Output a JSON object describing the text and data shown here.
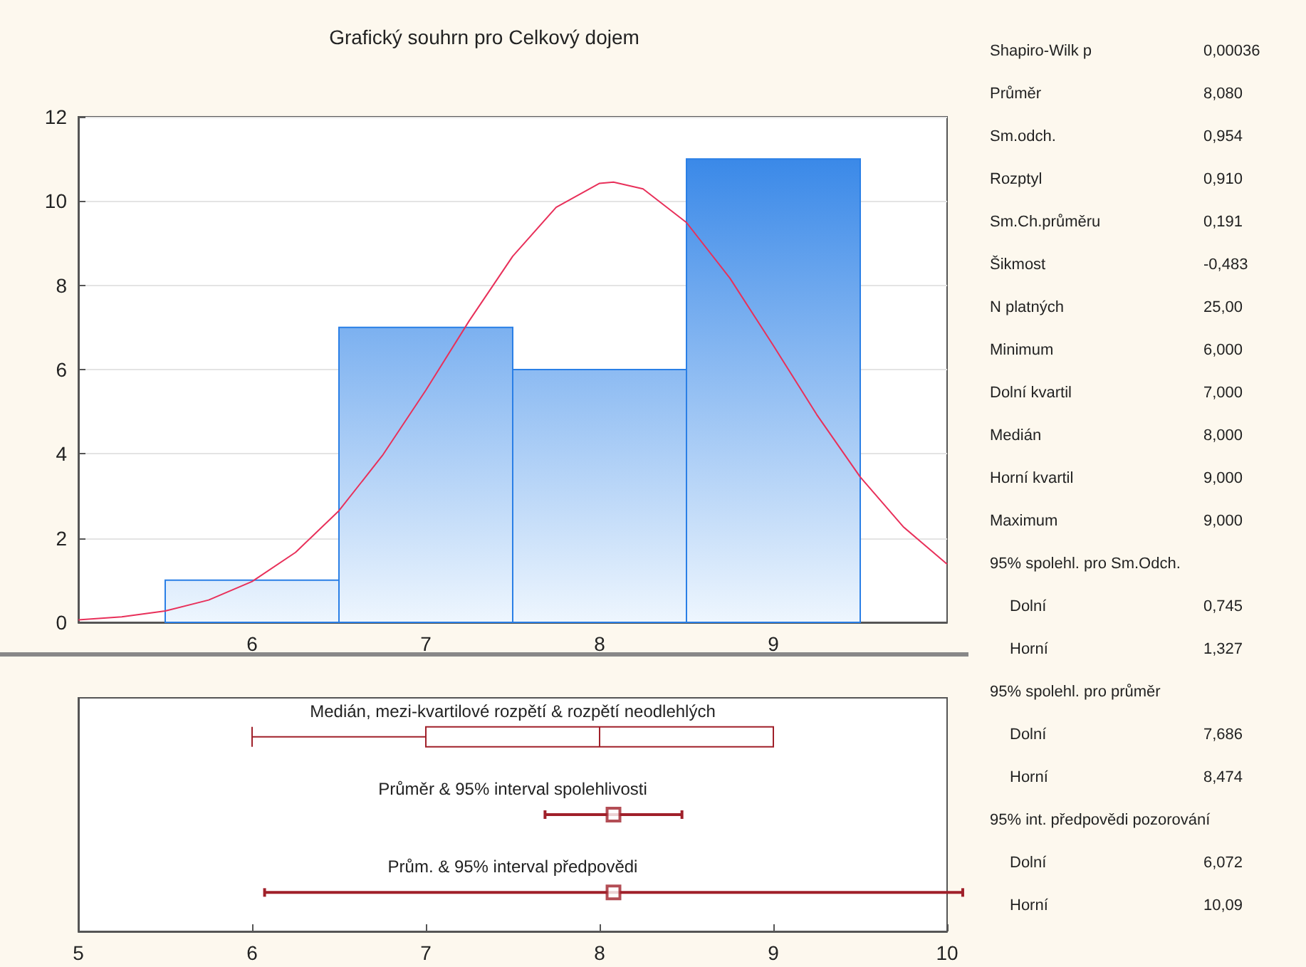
{
  "chart_data": [
    {
      "type": "histogram",
      "title": "Grafický souhrn pro Celkový dojem",
      "xlim": [
        5,
        10
      ],
      "xticks": [
        6,
        7,
        8,
        9
      ],
      "ylim": [
        0,
        12
      ],
      "yticks": [
        0,
        2,
        4,
        6,
        8,
        10,
        12
      ],
      "grid": "y",
      "series": [
        {
          "type": "histogram",
          "color": "#2a7fe6",
          "bins": [
            5.5,
            6.5,
            7.5,
            8.5,
            9.5
          ],
          "values": [
            1,
            7,
            6,
            11
          ]
        },
        {
          "type": "line",
          "color": "#e8305a",
          "x": [
            5,
            5.25,
            5.5,
            5.75,
            6,
            6.25,
            6.5,
            6.75,
            7,
            7.25,
            7.5,
            7.75,
            8,
            8.08,
            8.25,
            8.5,
            8.75,
            9,
            9.25,
            9.5,
            9.75,
            10
          ],
          "values": [
            0.06,
            0.13,
            0.27,
            0.53,
            0.97,
            1.66,
            2.65,
            3.96,
            5.51,
            7.16,
            8.69,
            9.85,
            10.42,
            10.45,
            10.29,
            9.49,
            8.17,
            6.57,
            4.93,
            3.45,
            2.26,
            1.38
          ]
        }
      ]
    },
    {
      "type": "box",
      "orientation": "horizontal",
      "categories": [
        "Medián, mezi-kvartilové rozpětí & rozpětí neodlehlých",
        "Průměr & 95% interval spolehlivosti",
        "Prům. & 95% interval předpovědi"
      ],
      "xlim": [
        5,
        10
      ],
      "xticks": [
        5,
        6,
        7,
        8,
        9,
        10
      ],
      "series": [
        {
          "type": "box",
          "color": "#a0202a",
          "boxes": [
            {
              "low": 6,
              "q1": 7,
              "median": 8,
              "q3": 9,
              "high": 9
            },
            null,
            null
          ]
        },
        {
          "type": "scatter",
          "color": "#a0202a",
          "marker": "square",
          "values": [
            null,
            8.08,
            8.08
          ],
          "errors": [
            null,
            [
              7.686,
              8.474
            ],
            [
              6.072,
              10.09
            ]
          ]
        }
      ]
    },
    {
      "type": "other",
      "categories": [
        "Shapiro-Wilk p",
        "Průměr",
        "Sm.odch.",
        "Rozptyl",
        "Sm.Ch.průměru",
        "Šikmost",
        "N platných",
        "Minimum",
        "Dolní kvartil",
        "Medián",
        "Horní kvartil",
        "Maximum",
        "95% spolehl. pro Sm.Odch.",
        "Dolní",
        "Horní",
        "95% spolehl. pro průměr",
        "Dolní",
        "Horní",
        "95% int. předpovědi pozorování",
        "Dolní",
        "Horní"
      ],
      "value_labels": [
        "0,00036",
        "8,080",
        "0,954",
        "0,910",
        "0,191",
        "-0,483",
        "25,00",
        "6,000",
        "7,000",
        "8,000",
        "9,000",
        "9,000",
        null,
        "0,745",
        "1,327",
        null,
        "7,686",
        "8,474",
        null,
        "6,072",
        "10,09"
      ]
    }
  ]
}
